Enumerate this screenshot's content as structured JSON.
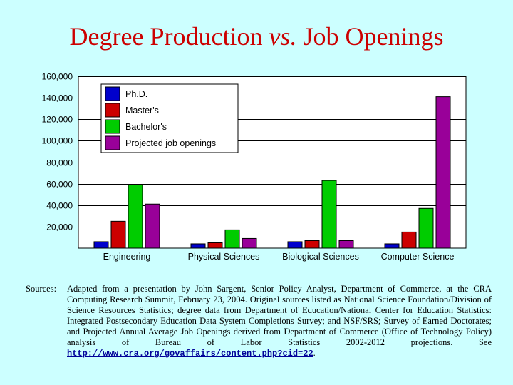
{
  "title": {
    "part1": "Degree Production ",
    "italic": "vs.",
    "part2": " Job Openings"
  },
  "chart_data": {
    "type": "bar",
    "categories": [
      "Engineering",
      "Physical Sciences",
      "Biological Sciences",
      "Computer Science"
    ],
    "series": [
      {
        "name": "Ph.D.",
        "color": "#0000cc",
        "values": [
          6000,
          4000,
          6000,
          4000
        ]
      },
      {
        "name": "Master's",
        "color": "#cc0000",
        "values": [
          25000,
          5000,
          7000,
          15000
        ]
      },
      {
        "name": "Bachelor's",
        "color": "#00cc00",
        "values": [
          59000,
          17000,
          63000,
          37000
        ]
      },
      {
        "name": "Projected  job openings",
        "color": "#990099",
        "values": [
          41000,
          9000,
          7000,
          141000
        ]
      }
    ],
    "ylim": [
      0,
      160000
    ],
    "yticks": [
      "160,000",
      "140,000",
      "120,000",
      "100,000",
      "80,000",
      "60,000",
      "40,000",
      "20,000"
    ],
    "ytick_values": [
      160000,
      140000,
      120000,
      100000,
      80000,
      60000,
      40000,
      20000
    ],
    "legend_position": "top-left",
    "grid": true
  },
  "sources": {
    "label": "Sources:",
    "text": "Adapted from a presentation by John Sargent, Senior Policy Analyst, Department of Commerce, at the CRA Computing Research Summit, February 23, 2004. Original sources listed as National Science Foundation/Division of Science Resources Statistics; degree data from Department of Education/National Center for Education Statistics: Integrated Postsecondary Education Data System Completions Survey; and NSF/SRS; Survey of Earned Doctorates; and Projected Annual Average Job Openings derived from Department of Commerce (Office of Technology Policy) analysis of Bureau of Labor Statistics 2002-2012 projections. See ",
    "url": "http://www.cra.org/govaffairs/content.php?cid=22",
    "end": "."
  }
}
